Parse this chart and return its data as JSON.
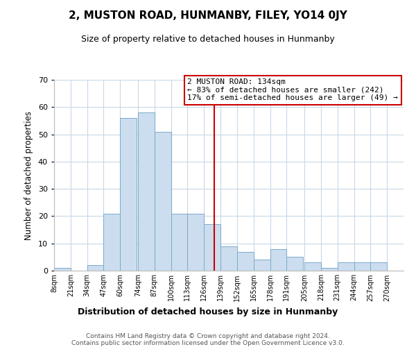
{
  "title": "2, MUSTON ROAD, HUNMANBY, FILEY, YO14 0JY",
  "subtitle": "Size of property relative to detached houses in Hunmanby",
  "xlabel": "Distribution of detached houses by size in Hunmanby",
  "ylabel": "Number of detached properties",
  "bar_labels": [
    "8sqm",
    "21sqm",
    "34sqm",
    "47sqm",
    "60sqm",
    "74sqm",
    "87sqm",
    "100sqm",
    "113sqm",
    "126sqm",
    "139sqm",
    "152sqm",
    "165sqm",
    "178sqm",
    "191sqm",
    "205sqm",
    "218sqm",
    "231sqm",
    "244sqm",
    "257sqm",
    "270sqm"
  ],
  "bar_values": [
    1,
    0,
    2,
    21,
    56,
    58,
    51,
    21,
    21,
    17,
    9,
    7,
    4,
    8,
    5,
    3,
    1,
    3,
    3,
    3
  ],
  "bar_edges": [
    8,
    21,
    34,
    47,
    60,
    74,
    87,
    100,
    113,
    126,
    139,
    152,
    165,
    178,
    191,
    205,
    218,
    231,
    244,
    257,
    270
  ],
  "ylim": [
    0,
    70
  ],
  "yticks": [
    0,
    10,
    20,
    30,
    40,
    50,
    60,
    70
  ],
  "property_line_x": 134,
  "bar_color": "#ccddef",
  "bar_edge_color": "#7aaac8",
  "vline_color": "#cc0000",
  "annotation_box_color": "#cc0000",
  "annotation_line1": "2 MUSTON ROAD: 134sqm",
  "annotation_line2": "← 83% of detached houses are smaller (242)",
  "annotation_line3": "17% of semi-detached houses are larger (49) →",
  "footnote1": "Contains HM Land Registry data © Crown copyright and database right 2024.",
  "footnote2": "Contains public sector information licensed under the Open Government Licence v3.0.",
  "background_color": "#ffffff",
  "grid_color": "#c8d8e8"
}
